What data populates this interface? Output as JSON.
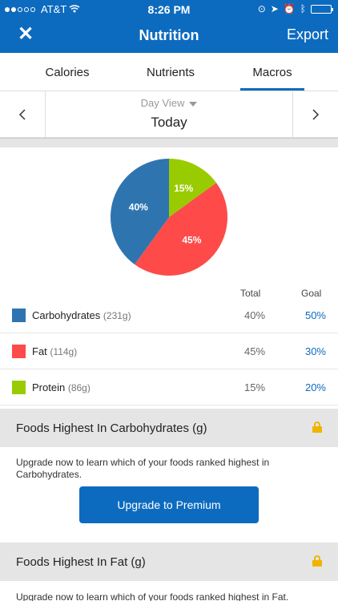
{
  "status_bar": {
    "carrier": "AT&T",
    "time": "8:26 PM"
  },
  "nav": {
    "title": "Nutrition",
    "export_label": "Export"
  },
  "tabs": [
    {
      "label": "Calories"
    },
    {
      "label": "Nutrients"
    },
    {
      "label": "Macros"
    }
  ],
  "day_nav": {
    "view_label": "Day View",
    "date_label": "Today"
  },
  "chart_data": {
    "type": "pie",
    "slices": [
      {
        "label": "40%",
        "value": 40,
        "color": "#2e75b0"
      },
      {
        "label": "45%",
        "value": 45,
        "color": "#ff4a4a"
      },
      {
        "label": "15%",
        "value": 15,
        "color": "#99cc00"
      }
    ]
  },
  "table": {
    "total_header": "Total",
    "goal_header": "Goal",
    "rows": [
      {
        "name": "Carbohydrates",
        "grams": "(231g)",
        "total": "40%",
        "goal": "50%",
        "color": "#2e75b0"
      },
      {
        "name": "Fat",
        "grams": "(114g)",
        "total": "45%",
        "goal": "30%",
        "color": "#ff4a4a"
      },
      {
        "name": "Protein",
        "grams": "(86g)",
        "total": "15%",
        "goal": "20%",
        "color": "#99cc00"
      }
    ]
  },
  "sections": [
    {
      "title": "Foods Highest In Carbohydrates (g)",
      "text": "Upgrade now to learn which of your foods ranked highest in Carbohydrates.",
      "button_label": "Upgrade to Premium"
    },
    {
      "title": "Foods Highest In Fat (g)",
      "text": "Upgrade now to learn which of your foods ranked highest in Fat."
    }
  ]
}
